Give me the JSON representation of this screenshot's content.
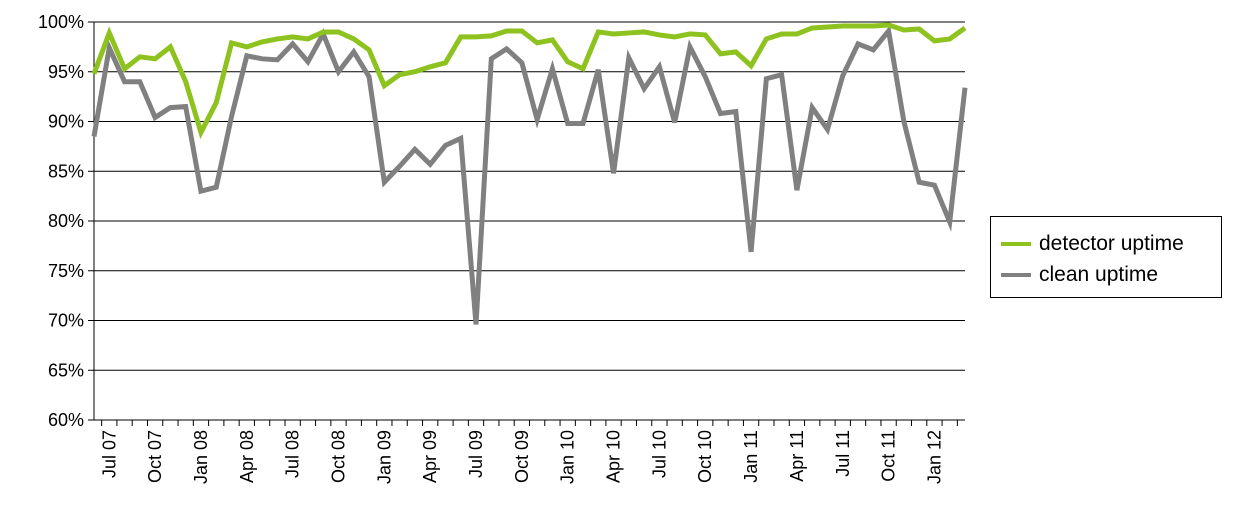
{
  "chart_data": {
    "type": "line",
    "y_tick_labels": [
      "60%",
      "65%",
      "70%",
      "75%",
      "80%",
      "85%",
      "90%",
      "95%",
      "100%"
    ],
    "ylim": [
      60,
      100
    ],
    "grid": true,
    "legend_position": "right",
    "x_tick_labels": [
      "Jul 07",
      "Oct 07",
      "Jan 08",
      "Apr 08",
      "Jul 08",
      "Oct 08",
      "Jan 09",
      "Apr 09",
      "Jul 09",
      "Oct 09",
      "Jan 10",
      "Apr 10",
      "Jul 10",
      "Oct 10",
      "Jan 11",
      "Apr 11",
      "Jul 11",
      "Oct 11",
      "Jan 12"
    ],
    "x": [
      "Jun 07",
      "Jul 07",
      "Aug 07",
      "Sep 07",
      "Oct 07",
      "Nov 07",
      "Dec 07",
      "Jan 08",
      "Feb 08",
      "Mar 08",
      "Apr 08",
      "May 08",
      "Jun 08",
      "Jul 08",
      "Aug 08",
      "Sep 08",
      "Oct 08",
      "Nov 08",
      "Dec 08",
      "Jan 09",
      "Feb 09",
      "Mar 09",
      "Apr 09",
      "May 09",
      "Jun 09",
      "Jul 09",
      "Aug 09",
      "Sep 09",
      "Oct 09",
      "Nov 09",
      "Dec 09",
      "Jan 10",
      "Feb 10",
      "Mar 10",
      "Apr 10",
      "May 10",
      "Jun 10",
      "Jul 10",
      "Aug 10",
      "Sep 10",
      "Oct 10",
      "Nov 10",
      "Dec 10",
      "Jan 11",
      "Feb 11",
      "Mar 11",
      "Apr 11",
      "May 11",
      "Jun 11",
      "Jul 11",
      "Aug 11",
      "Sep 11",
      "Oct 11",
      "Nov 11",
      "Dec 11",
      "Jan 12",
      "Feb 12",
      "Mar 12"
    ],
    "series": [
      {
        "name": "detector uptime",
        "color": "#8dc21f",
        "values": [
          94.8,
          98.9,
          95.3,
          96.5,
          96.3,
          97.5,
          94.0,
          88.9,
          91.9,
          97.9,
          97.5,
          98.0,
          98.3,
          98.5,
          98.3,
          99.0,
          99.0,
          98.3,
          97.2,
          93.6,
          94.7,
          95.0,
          95.5,
          95.9,
          98.5,
          98.5,
          98.6,
          99.1,
          99.1,
          97.9,
          98.2,
          96.0,
          95.3,
          99.0,
          98.8,
          98.9,
          99.0,
          98.7,
          98.5,
          98.8,
          98.7,
          96.8,
          97.0,
          95.6,
          98.3,
          98.8,
          98.8,
          99.4,
          99.5,
          99.6,
          99.6,
          99.6,
          99.7,
          99.2,
          99.3,
          98.1,
          98.3,
          99.4
        ]
      },
      {
        "name": "clean uptime",
        "color": "#808080",
        "values": [
          88.5,
          97.4,
          94.0,
          94.0,
          90.4,
          91.4,
          91.5,
          83.0,
          83.4,
          90.5,
          96.6,
          96.3,
          96.2,
          97.8,
          96.0,
          98.8,
          95.0,
          97.0,
          94.5,
          83.9,
          85.5,
          87.2,
          85.7,
          87.6,
          88.3,
          69.6,
          96.3,
          97.3,
          95.9,
          90.2,
          95.3,
          89.8,
          89.8,
          95.2,
          84.8,
          96.4,
          93.3,
          95.5,
          89.9,
          97.5,
          94.5,
          90.8,
          91.0,
          76.9,
          94.3,
          94.7,
          83.1,
          91.4,
          89.2,
          94.6,
          97.8,
          97.2,
          99.1,
          90.0,
          83.9,
          83.6,
          79.9,
          93.4
        ]
      }
    ]
  }
}
